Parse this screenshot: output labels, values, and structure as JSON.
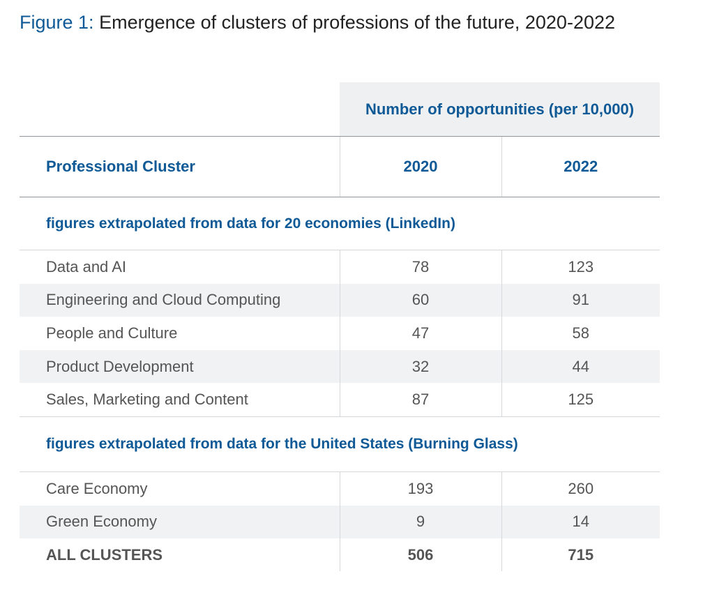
{
  "figure": {
    "label": "Figure 1:",
    "title": "Emergence of clusters of professions of the future, 2020-2022"
  },
  "table": {
    "group_header": "Number of opportunities (per 10,000)",
    "column_headers": [
      "Professional Cluster",
      "2020",
      "2022"
    ],
    "sections": [
      {
        "heading": "figures extrapolated from data for 20 economies (LinkedIn)",
        "rows": [
          [
            "Data and AI",
            "78",
            "123"
          ],
          [
            "Engineering and Cloud Computing",
            "60",
            "91"
          ],
          [
            "People and Culture",
            "47",
            "58"
          ],
          [
            "Product Development",
            "32",
            "44"
          ],
          [
            "Sales, Marketing and Content",
            "87",
            "125"
          ]
        ]
      },
      {
        "heading": "figures extrapolated from data for the United States (Burning Glass)",
        "rows": [
          [
            "Care Economy",
            "193",
            "260"
          ],
          [
            "Green Economy",
            "9",
            "14"
          ]
        ]
      }
    ],
    "total": [
      "ALL CLUSTERS",
      "506",
      "715"
    ]
  },
  "colors": {
    "accent_blue": "#0f5a96",
    "title_text": "#222222",
    "body_text": "#555555",
    "shade": "#f1f2f3",
    "header_bg": "#eef0f2"
  }
}
